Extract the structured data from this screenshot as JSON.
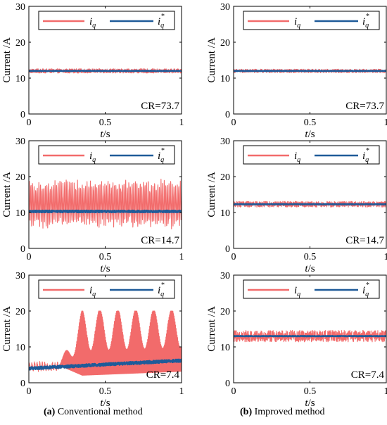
{
  "colors": {
    "measured": "#f26b6b",
    "reference": "#1f5b99",
    "axis": "#000000"
  },
  "legend": {
    "measured_label": "i",
    "measured_sub": "q",
    "reference_label": "i",
    "reference_sub": "q",
    "reference_sup": "*"
  },
  "captions": [
    {
      "tag": "(a)",
      "text": " Conventional method"
    },
    {
      "tag": "(b)",
      "text": " Improved method"
    }
  ],
  "chart_data": [
    {
      "type": "line",
      "column": "conventional",
      "row": 1,
      "ylabel": "Current /A",
      "xlabel_italic": "t",
      "xlabel_unit": "/s",
      "xlim": [
        0,
        1
      ],
      "ylim": [
        0,
        30
      ],
      "xticks": [
        0,
        0.5,
        1
      ],
      "xtick_labels": [
        "0",
        "0.5",
        "1"
      ],
      "yticks": [
        0,
        10,
        20,
        30
      ],
      "ytick_labels": [
        "0",
        "10",
        "20",
        "30"
      ],
      "annotation": "CR=73.7",
      "series": [
        {
          "name": "iq",
          "pattern": "steady",
          "mean": 12,
          "ripple": 0.6
        },
        {
          "name": "iq*",
          "pattern": "steady",
          "mean": 12,
          "ripple": 0.1
        }
      ]
    },
    {
      "type": "line",
      "column": "improved",
      "row": 1,
      "ylabel": "Current /A",
      "xlabel_italic": "t",
      "xlabel_unit": "/s",
      "xlim": [
        0,
        1
      ],
      "ylim": [
        0,
        30
      ],
      "xticks": [
        0,
        0.5,
        1
      ],
      "xtick_labels": [
        "0",
        "0.5",
        "1"
      ],
      "yticks": [
        0,
        10,
        20,
        30
      ],
      "ytick_labels": [
        "0",
        "10",
        "20",
        "30"
      ],
      "annotation": "CR=73.7",
      "series": [
        {
          "name": "iq",
          "pattern": "steady",
          "mean": 12,
          "ripple": 0.5
        },
        {
          "name": "iq*",
          "pattern": "steady",
          "mean": 12,
          "ripple": 0.1
        }
      ]
    },
    {
      "type": "line",
      "column": "conventional",
      "row": 2,
      "ylabel": "Current /A",
      "xlabel_italic": "t",
      "xlabel_unit": "/s",
      "xlim": [
        0,
        1
      ],
      "ylim": [
        0,
        30
      ],
      "xticks": [
        0,
        0.5,
        1
      ],
      "xtick_labels": [
        "0",
        "0.5",
        "1"
      ],
      "yticks": [
        0,
        10,
        20,
        30
      ],
      "ytick_labels": [
        "0",
        "10",
        "20",
        "30"
      ],
      "annotation": "CR=14.7",
      "series": [
        {
          "name": "iq",
          "pattern": "oscillation",
          "mean": 12.5,
          "amplitude": 6.5
        },
        {
          "name": "iq*",
          "pattern": "steady",
          "mean": 10.3,
          "ripple": 0.3
        }
      ]
    },
    {
      "type": "line",
      "column": "improved",
      "row": 2,
      "ylabel": "Current /A",
      "xlabel_italic": "t",
      "xlabel_unit": "/s",
      "xlim": [
        0,
        1
      ],
      "ylim": [
        0,
        30
      ],
      "xticks": [
        0,
        0.5,
        1
      ],
      "xtick_labels": [
        "0",
        "0.5",
        "1"
      ],
      "yticks": [
        0,
        10,
        20,
        30
      ],
      "ytick_labels": [
        "0",
        "10",
        "20",
        "30"
      ],
      "annotation": "CR=14.7",
      "series": [
        {
          "name": "iq",
          "pattern": "steady",
          "mean": 12.3,
          "ripple": 0.8
        },
        {
          "name": "iq*",
          "pattern": "steady",
          "mean": 12.3,
          "ripple": 0.1
        }
      ]
    },
    {
      "type": "line",
      "column": "conventional",
      "row": 3,
      "ylabel": "Current /A",
      "xlabel_italic": "t",
      "xlabel_unit": "/s",
      "xlim": [
        0,
        1
      ],
      "ylim": [
        0,
        30
      ],
      "xticks": [
        0,
        0.5,
        1
      ],
      "xtick_labels": [
        "0",
        "0.5",
        "1"
      ],
      "yticks": [
        0,
        10,
        20,
        30
      ],
      "ytick_labels": [
        "0",
        "10",
        "20",
        "30"
      ],
      "annotation": "CR=7.4",
      "series": [
        {
          "name": "iq",
          "pattern": "saturating",
          "mean": 4.5,
          "amplitude": 1.5,
          "saturation_start": 0.2,
          "saturation_level": 20
        },
        {
          "name": "iq*",
          "pattern": "ramp",
          "start": 4,
          "end": 6.2
        }
      ]
    },
    {
      "type": "line",
      "column": "improved",
      "row": 3,
      "ylabel": "Current /A",
      "xlabel_italic": "t",
      "xlabel_unit": "/s",
      "xlim": [
        0,
        1
      ],
      "ylim": [
        0,
        30
      ],
      "xticks": [
        0,
        0.5,
        1
      ],
      "xtick_labels": [
        "0",
        "0.5",
        "1"
      ],
      "yticks": [
        0,
        10,
        20,
        30
      ],
      "ytick_labels": [
        "0",
        "10",
        "20",
        "30"
      ],
      "annotation": "CR=7.4",
      "series": [
        {
          "name": "iq",
          "pattern": "steady",
          "mean": 13,
          "ripple": 1.6
        },
        {
          "name": "iq*",
          "pattern": "steady",
          "mean": 13,
          "ripple": 0.1
        }
      ]
    }
  ]
}
